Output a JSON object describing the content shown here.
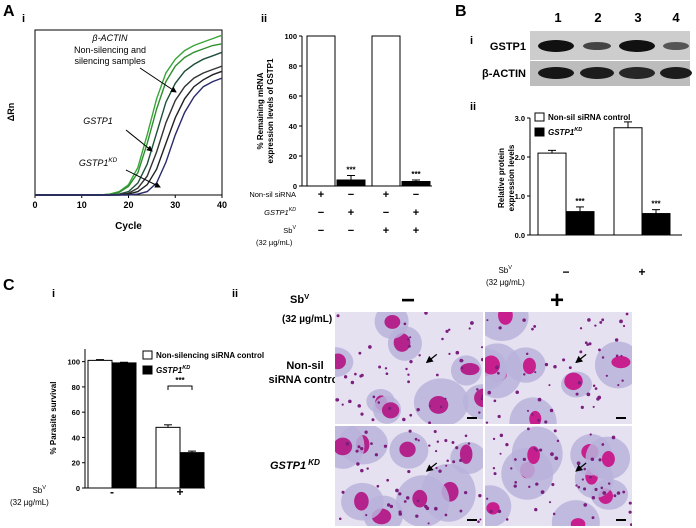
{
  "panels": {
    "A": "A",
    "A_i": "i",
    "A_ii": "ii",
    "B": "B",
    "B_i": "i",
    "B_ii": "ii",
    "C": "C",
    "C_i": "i",
    "C_ii": "ii"
  },
  "chart_data": [
    {
      "type": "line",
      "x": [
        0,
        2,
        4,
        6,
        8,
        10,
        12,
        14,
        16,
        18,
        20,
        22,
        24,
        26,
        28,
        30,
        32,
        34,
        36,
        38,
        40
      ],
      "series": [
        {
          "color": "#3aa53a",
          "values": [
            0,
            0,
            0,
            0,
            0,
            0,
            0,
            0,
            0.05,
            0.2,
            0.6,
            1.6,
            3.5,
            5.6,
            7.1,
            7.9,
            8.4,
            8.7,
            8.9,
            9.1,
            9.3
          ]
        },
        {
          "color": "#2f8f2f",
          "values": [
            0,
            0,
            0,
            0,
            0,
            0,
            0,
            0,
            0.04,
            0.15,
            0.5,
            1.3,
            3.0,
            5.0,
            6.6,
            7.5,
            8.0,
            8.3,
            8.5,
            8.7,
            8.8
          ]
        },
        {
          "color": "#1f4f3a",
          "values": [
            0,
            0,
            0,
            0,
            0,
            0,
            0,
            0,
            0,
            0.05,
            0.2,
            0.7,
            1.8,
            3.6,
            5.4,
            6.5,
            7.2,
            7.6,
            7.9,
            8.1,
            8.3
          ]
        },
        {
          "color": "#333333",
          "values": [
            0,
            0,
            0,
            0,
            0,
            0,
            0,
            0,
            0,
            0.02,
            0.1,
            0.4,
            1.1,
            2.5,
            4.2,
            5.5,
            6.3,
            6.8,
            7.1,
            7.3,
            7.5
          ]
        },
        {
          "color": "#222222",
          "values": [
            0,
            0,
            0,
            0,
            0,
            0,
            0,
            0,
            0,
            0,
            0.05,
            0.2,
            0.6,
            1.5,
            3.0,
            4.5,
            5.6,
            6.3,
            6.7,
            7.0,
            7.2
          ]
        },
        {
          "color": "#2a2a6a",
          "values": [
            0,
            0,
            0,
            0,
            0,
            0,
            0,
            0,
            0,
            0,
            0,
            0.05,
            0.2,
            0.7,
            1.9,
            3.5,
            4.8,
            5.7,
            6.3,
            6.6,
            6.8
          ]
        }
      ],
      "xlim": [
        0,
        40
      ],
      "xticks": [
        0,
        10,
        20,
        30,
        40
      ],
      "ylim": [
        0,
        9.6
      ],
      "xlabel": "Cycle",
      "ylabel": "ΔRn",
      "annotations": [
        {
          "text": "β-ACTIN"
        },
        {
          "text": "Non-silencing and"
        },
        {
          "text": "silencing samples"
        },
        {
          "text": "GSTP1"
        },
        {
          "text": "GSTP1",
          "sup": "KD"
        }
      ]
    },
    {
      "type": "bar",
      "categories": [
        null,
        null,
        null,
        null
      ],
      "values": [
        100,
        4,
        100,
        3
      ],
      "errors": [
        0,
        3,
        0,
        1
      ],
      "colors": [
        "#ffffff",
        "#000000",
        "#ffffff",
        "#000000"
      ],
      "significance": [
        null,
        "***",
        null,
        "***"
      ],
      "ylim": [
        0,
        100
      ],
      "yticks": [
        0,
        20,
        40,
        60,
        80,
        100
      ],
      "ylabel": [
        "% Remaining mRNA",
        "expression levels of GSTP1"
      ],
      "conditions": [
        {
          "label": "Non-sil siRNA",
          "signs": [
            "+",
            "−",
            "+",
            "−"
          ]
        },
        {
          "label": {
            "text": "GSTP1",
            "sup": "KD"
          },
          "signs": [
            "−",
            "+",
            "−",
            "+"
          ]
        },
        {
          "label": {
            "text": "Sb",
            "sup": "V",
            "unit": "(32 µg/mL)"
          },
          "signs": [
            "−",
            "−",
            "+",
            "+"
          ]
        }
      ]
    },
    {
      "type": "bar",
      "categories": [
        "−",
        "+"
      ],
      "series": [
        {
          "name": "Non-sil siRNA control",
          "color": "#ffffff",
          "values": [
            2.1,
            2.75
          ],
          "errors": [
            0.07,
            0.15
          ],
          "significance": [
            null,
            null
          ]
        },
        {
          "name": {
            "text": "GSTP1",
            "sup": "KD"
          },
          "color": "#000000",
          "values": [
            0.6,
            0.55
          ],
          "errors": [
            0.12,
            0.1
          ],
          "significance": [
            "***",
            "***"
          ]
        }
      ],
      "ylim": [
        0,
        3
      ],
      "yticks": [
        {
          "value": 0,
          "label": "0.0"
        },
        {
          "value": 1,
          "label": "1.0"
        },
        {
          "value": 2,
          "label": "2.0"
        },
        {
          "value": 3,
          "label": "3.0"
        }
      ],
      "ylabel": [
        "Relative protein",
        "expression levels"
      ],
      "xlabel": {
        "text": "Sb",
        "sup": "V",
        "unit": "(32 µg/mL)"
      }
    },
    {
      "type": "bar",
      "categories": [
        "-",
        "+"
      ],
      "series": [
        {
          "name": "Non-silencing siRNA control",
          "color": "#ffffff",
          "values": [
            101,
            48
          ],
          "errors": [
            0.6,
            2
          ],
          "significance": [
            null,
            null
          ]
        },
        {
          "name": {
            "text": "GSTP1",
            "sup": "KD"
          },
          "color": "#000000",
          "values": [
            99,
            28
          ],
          "errors": [
            0.5,
            1.2
          ],
          "significance": [
            null,
            null
          ]
        }
      ],
      "ylim": [
        0,
        110
      ],
      "yticks": [
        0,
        20,
        40,
        60,
        80,
        100
      ],
      "ylabel": [
        "% Parasite survival"
      ],
      "xlabel": {
        "text": "Sb",
        "sup": "V",
        "unit": "(32 µg/mL)"
      },
      "bracket": "***"
    }
  ],
  "gel": {
    "lanes": [
      "1",
      "2",
      "3",
      "4"
    ],
    "rows": [
      "GSTP1",
      "β-ACTIN"
    ]
  },
  "micrographs": {
    "condition": {
      "text": "Sb",
      "sup": "V",
      "unit": "(32 µg/mL)"
    },
    "columns": [
      "−",
      "+"
    ],
    "rows": [
      {
        "lines": [
          "Non-sil",
          "siRNA control"
        ]
      },
      {
        "text": "GSTP1",
        "sup": "KD"
      }
    ]
  }
}
